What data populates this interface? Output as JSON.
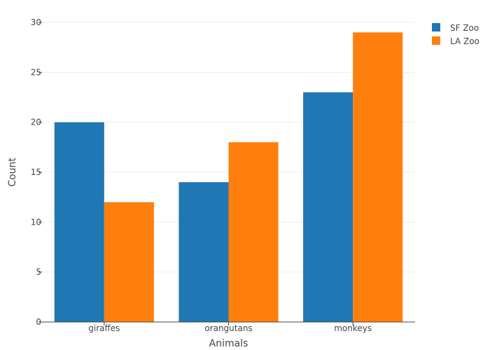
{
  "chart_data": {
    "type": "bar",
    "categories": [
      "giraffes",
      "orangutans",
      "monkeys"
    ],
    "series": [
      {
        "name": "SF Zoo",
        "values": [
          20,
          14,
          23
        ],
        "color": "#1f77b4"
      },
      {
        "name": "LA Zoo",
        "values": [
          12,
          18,
          29
        ],
        "color": "#ff7f0e"
      }
    ],
    "xlabel": "Animals",
    "ylabel": "Count",
    "ylim": [
      0,
      30
    ],
    "yticks": [
      0,
      5,
      10,
      15,
      20,
      25,
      30
    ],
    "grid": true,
    "legend_position": "top-right",
    "barmode": "grouped"
  }
}
